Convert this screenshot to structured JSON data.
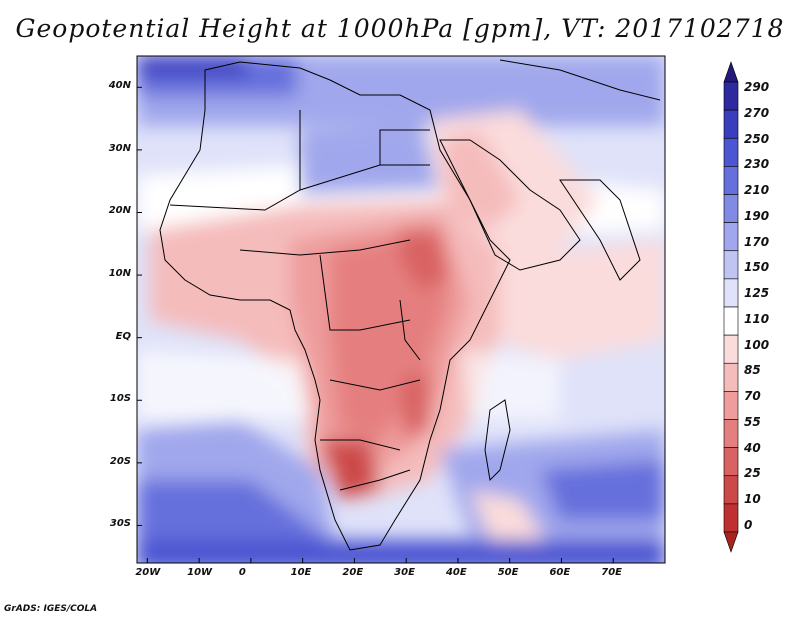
{
  "title": "Geopotential Height at 1000hPa [gpm], VT: 2017102718",
  "credit": "GrADS: IGES/COLA",
  "map": {
    "lon_range": [
      -22,
      80
    ],
    "lat_range": [
      -36,
      45
    ],
    "lat_ticks": [
      "40N",
      "30N",
      "20N",
      "10N",
      "EQ",
      "10S",
      "20S",
      "30S"
    ],
    "lon_ticks": [
      "20W",
      "10W",
      "0",
      "10E",
      "20E",
      "30E",
      "40E",
      "50E",
      "60E",
      "70E"
    ]
  },
  "colorbar": {
    "levels": [
      "290",
      "270",
      "250",
      "230",
      "210",
      "190",
      "170",
      "150",
      "125",
      "110",
      "100",
      "85",
      "70",
      "55",
      "40",
      "25",
      "10",
      "0"
    ],
    "colors": [
      "#241878",
      "#2d2aa0",
      "#3b3dbf",
      "#4c55d2",
      "#6670dc",
      "#828be4",
      "#a0a7ec",
      "#bfc4f3",
      "#dfe2f9",
      "#ffffff",
      "#fbdcdc",
      "#f5bcbc",
      "#ee9c9c",
      "#e57f7f",
      "#d96262",
      "#cd4848",
      "#bf3131",
      "#a8241f"
    ]
  }
}
